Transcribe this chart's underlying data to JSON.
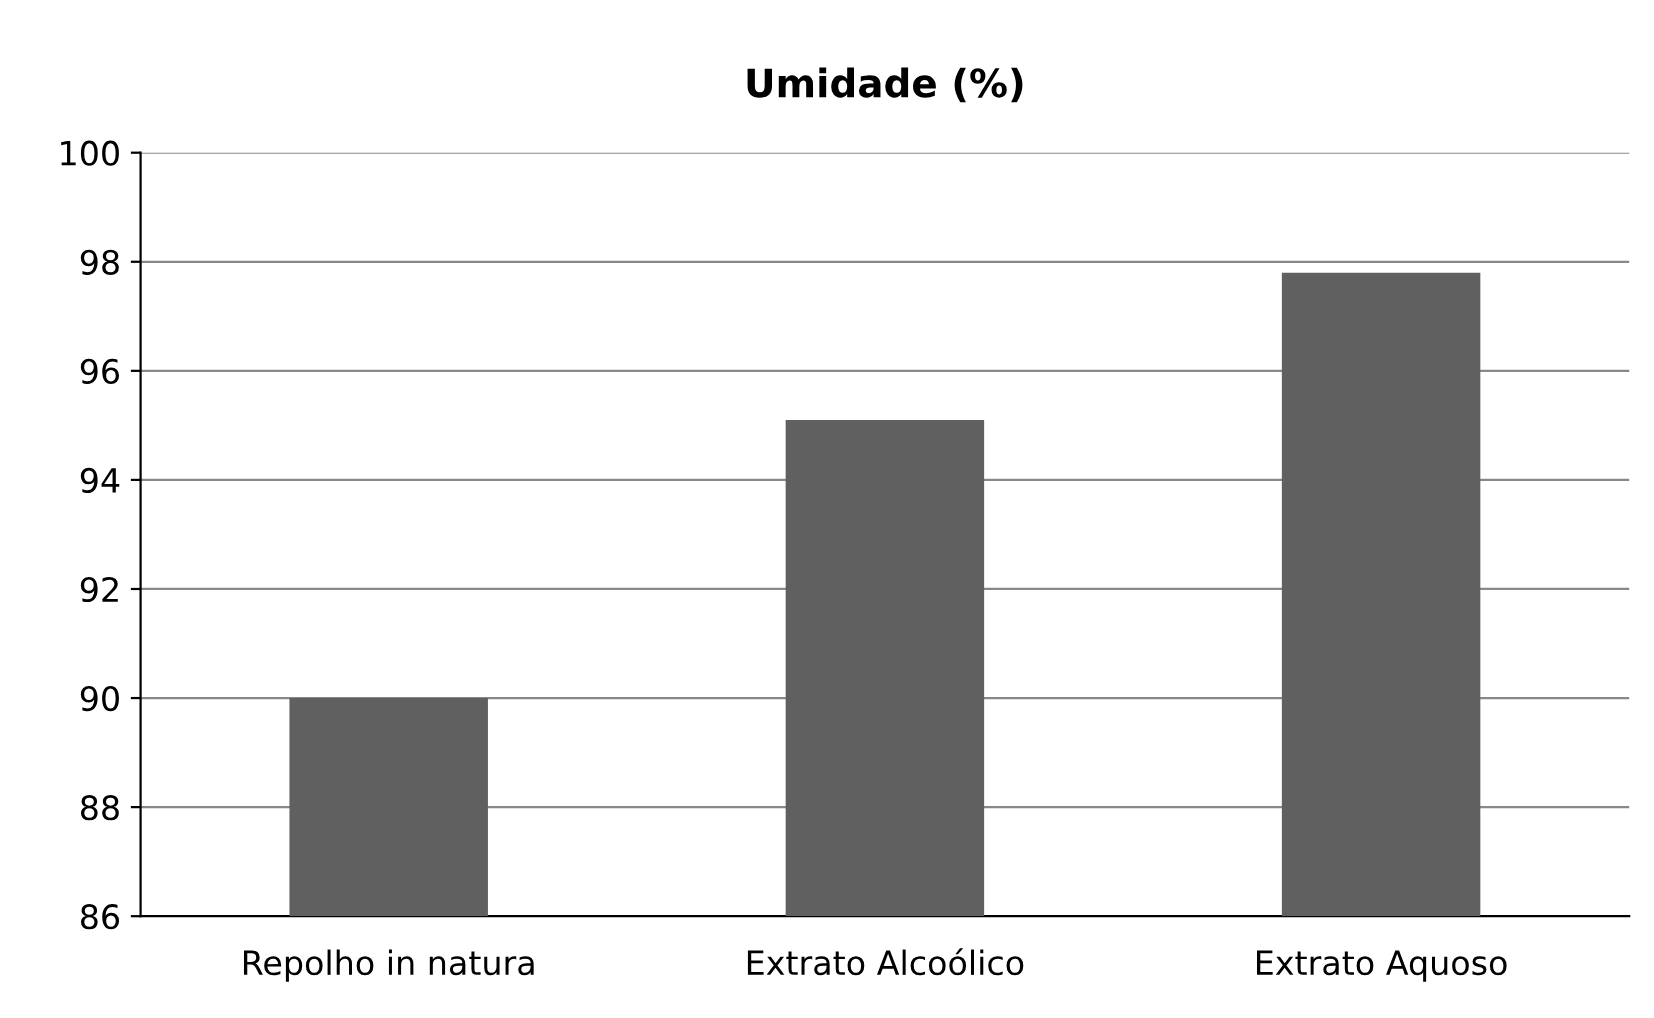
{
  "chart_data": {
    "type": "bar",
    "title": "Umidade (%)",
    "categories": [
      "Repolho in natura",
      "Extrato Alcoólico",
      "Extrato Aquoso"
    ],
    "values": [
      90.0,
      95.1,
      97.8
    ],
    "color": "#606060",
    "ylim": [
      86,
      100
    ],
    "yticks": [
      86,
      88,
      90,
      92,
      94,
      96,
      98,
      100
    ],
    "grid": "y",
    "legend": false
  }
}
